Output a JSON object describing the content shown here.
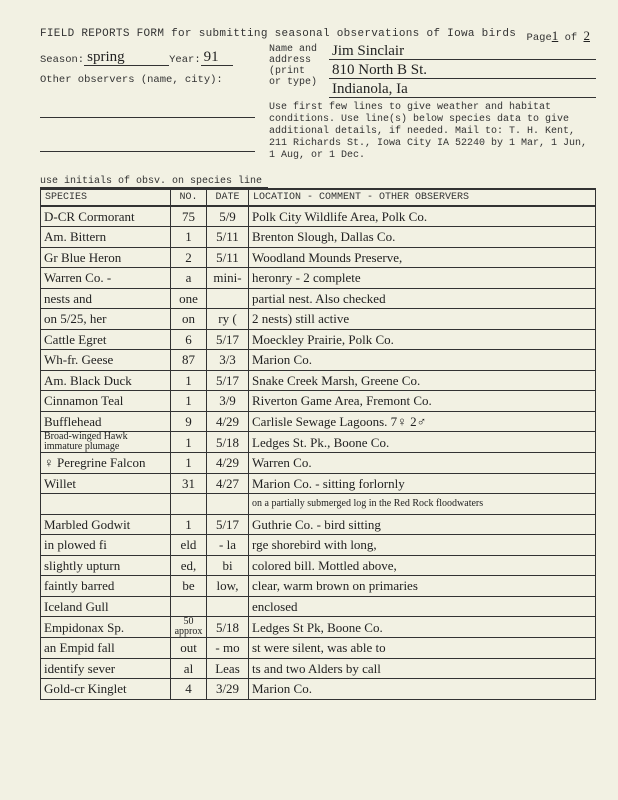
{
  "header": {
    "title": "FIELD REPORTS FORM for submitting seasonal observations of Iowa birds",
    "page_label": "Page",
    "page_cur": "1",
    "page_of": "of",
    "page_total": "2",
    "season_label": "Season:",
    "season": "spring",
    "year_label": "Year:",
    "year": "91",
    "other_obs_label": "Other observers (name, city):",
    "name_label_l1": "Name and",
    "name_label_l2": "address",
    "name_label_l3": "(print",
    "name_label_l4": "or type)",
    "name": "Jim Sinclair",
    "address1": "810 North B St.",
    "address2": "Indianola, Ia",
    "instructions": "Use first few lines to give weather and habitat conditions. Use line(s) below species data to give additional details, if needed. Mail to: T. H. Kent, 211 Richards St., Iowa City IA 52240 by 1 Mar, 1 Jun, 1 Aug, or 1 Dec.",
    "obs_line": "use initials of obsv. on species line"
  },
  "columns": {
    "species": "SPECIES",
    "no": "NO.",
    "date": "DATE",
    "location": "LOCATION - COMMENT - OTHER OBSERVERS"
  },
  "rows": [
    {
      "sp": "D-CR Cormorant",
      "no": "75",
      "dt": "5/9",
      "loc": "Polk City Wildlife Area, Polk Co."
    },
    {
      "sp": "Am. Bittern",
      "no": "1",
      "dt": "5/11",
      "loc": "Brenton Slough, Dallas Co."
    },
    {
      "sp": "Gr Blue Heron",
      "no": "2",
      "dt": "5/11",
      "loc": "Woodland Mounds Preserve,"
    },
    {
      "sp": "Warren Co. -",
      "no": "a",
      "dt": "mini-",
      "loc": "heronry - 2 complete"
    },
    {
      "sp": "nests and",
      "no": "one",
      "dt": "",
      "loc": "partial nest. Also checked",
      "dt_raw": "",
      "merge_no_dt": false
    },
    {
      "sp": "on 5/25, her",
      "no": "on",
      "dt": "ry (",
      "loc": "2 nests) still active"
    },
    {
      "sp": "Cattle Egret",
      "no": "6",
      "dt": "5/17",
      "loc": "Moeckley Prairie, Polk Co."
    },
    {
      "sp": "Wh-fr. Geese",
      "no": "87",
      "dt": "3/3",
      "loc": "Marion Co."
    },
    {
      "sp": "Am. Black Duck",
      "no": "1",
      "dt": "5/17",
      "loc": "Snake Creek Marsh, Greene Co."
    },
    {
      "sp": "Cinnamon Teal",
      "no": "1",
      "dt": "3/9",
      "loc": "Riverton Game Area, Fremont Co."
    },
    {
      "sp": "Bufflehead",
      "no": "9",
      "dt": "4/29",
      "loc": "Carlisle Sewage Lagoons. 7♀ 2♂"
    },
    {
      "sp": "Broad-winged Hawk immature plumage",
      "sp_sm": true,
      "no": "1",
      "dt": "5/18",
      "loc": "Ledges St. Pk., Boone Co."
    },
    {
      "sp": "♀ Peregrine Falcon",
      "no": "1",
      "dt": "4/29",
      "loc": "Warren Co."
    },
    {
      "sp": "Willet",
      "no": "31",
      "dt": "4/27",
      "loc": "Marion Co. - sitting forlornly"
    },
    {
      "sp": "",
      "no": "",
      "dt": "",
      "loc": "on a partially submerged log in the Red Rock floodwaters",
      "loc_sm": true
    },
    {
      "sp": "Marbled Godwit",
      "no": "1",
      "dt": "5/17",
      "loc": "Guthrie Co. - bird sitting"
    },
    {
      "sp": "in plowed fi",
      "no": "eld",
      "dt": "- la",
      "loc": "rge shorebird with long,"
    },
    {
      "sp": "slightly upturn",
      "no": "ed,",
      "dt": "bi",
      "loc": "colored bill. Mottled above,"
    },
    {
      "sp": "faintly barred",
      "no": "be",
      "dt": "low,",
      "loc": "clear, warm brown on primaries"
    },
    {
      "sp": "Iceland Gull",
      "no": "",
      "dt": "",
      "loc": "enclosed"
    },
    {
      "sp": "Empidonax Sp.",
      "no": "50 approx",
      "no_sm": true,
      "dt": "5/18",
      "loc": "Ledges St Pk, Boone Co."
    },
    {
      "sp": "an Empid fall",
      "no": "out",
      "dt": "- mo",
      "loc": "st were silent, was able to"
    },
    {
      "sp": "identify sever",
      "no": "al",
      "dt": "Leas",
      "loc": "ts and two Alders by call"
    },
    {
      "sp": "Gold-cr Kinglet",
      "no": "4",
      "dt": "3/29",
      "loc": "Marion Co."
    }
  ]
}
